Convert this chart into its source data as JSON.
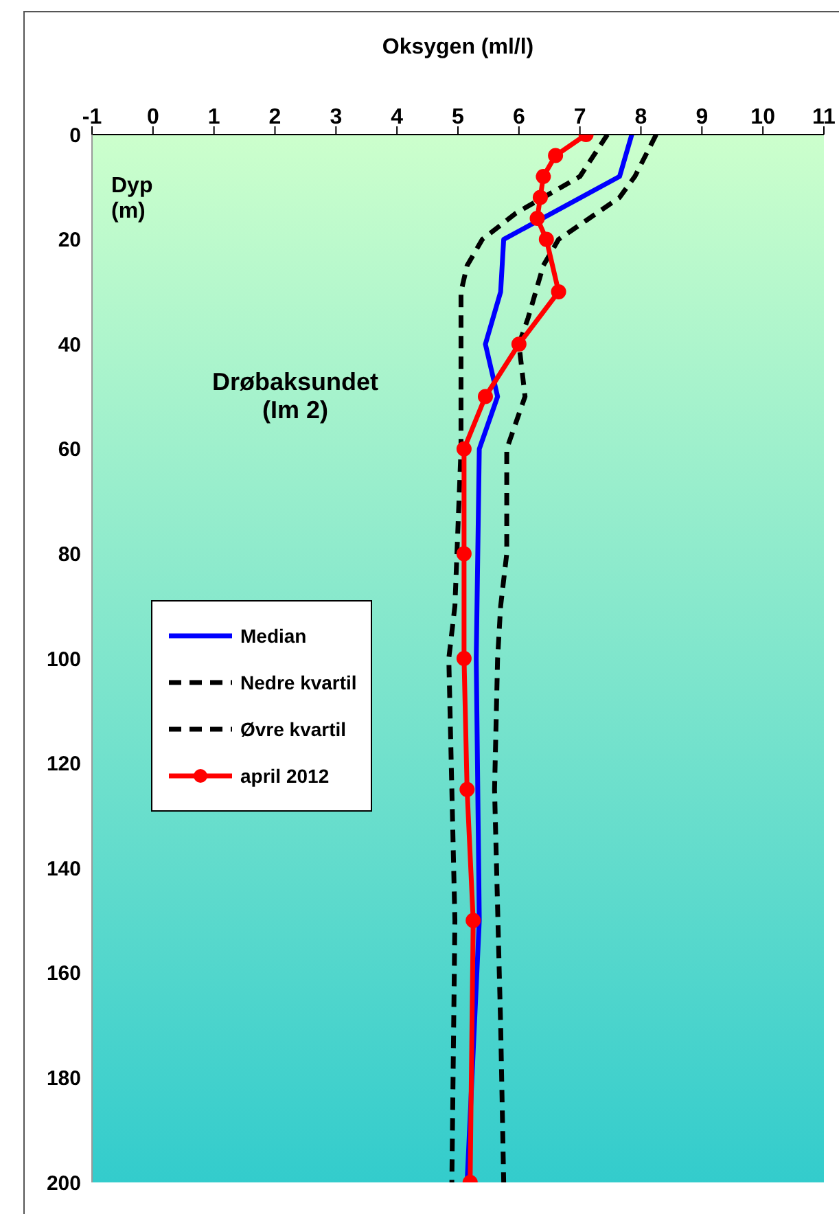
{
  "chart_data": {
    "type": "line",
    "orientation": "horizontal",
    "xlabel": "Oksygen (ml/l)",
    "ylabel": "Dyp\n(m)",
    "annotations": [
      "Drøbaksundet\n(Im 2)"
    ],
    "xlim": [
      -1,
      11
    ],
    "xticks": [
      -1,
      0,
      1,
      2,
      3,
      4,
      5,
      6,
      7,
      8,
      9,
      10,
      11
    ],
    "ylim": [
      200,
      0
    ],
    "yticks": [
      0,
      20,
      40,
      60,
      80,
      100,
      120,
      140,
      160,
      180,
      200
    ],
    "grid": false,
    "legend": "left",
    "series": [
      {
        "name": "Median",
        "color": "#0000ff",
        "line_style": "solid",
        "marker": "none",
        "x": [
          0,
          8,
          20,
          30,
          40,
          50,
          60,
          100,
          150,
          200
        ],
        "values": [
          7.85,
          7.65,
          5.75,
          5.7,
          5.45,
          5.65,
          5.35,
          5.3,
          5.35,
          5.15
        ]
      },
      {
        "name": "Nedre kvartil",
        "color": "#000000",
        "line_style": "dashed",
        "marker": "none",
        "x": [
          0,
          8,
          15,
          20,
          25,
          30,
          40,
          60,
          90,
          100,
          150,
          200
        ],
        "values": [
          7.45,
          7.0,
          5.95,
          5.4,
          5.15,
          5.05,
          5.05,
          5.05,
          4.95,
          4.85,
          4.95,
          4.9
        ]
      },
      {
        "name": "Øvre kvartil",
        "color": "#000000",
        "line_style": "dashed",
        "marker": "none",
        "x": [
          0,
          8,
          12,
          20,
          25,
          35,
          40,
          50,
          60,
          80,
          90,
          100,
          125,
          170,
          200
        ],
        "values": [
          8.25,
          7.9,
          7.65,
          6.65,
          6.4,
          6.15,
          6.0,
          6.1,
          5.8,
          5.8,
          5.7,
          5.65,
          5.6,
          5.7,
          5.75
        ]
      },
      {
        "name": "april 2012",
        "color": "#ff0000",
        "line_style": "solid",
        "marker": "circle",
        "x": [
          0,
          4,
          8,
          12,
          16,
          20,
          30,
          40,
          50,
          60,
          80,
          100,
          125,
          150,
          200
        ],
        "values": [
          7.1,
          6.6,
          6.4,
          6.35,
          6.3,
          6.45,
          6.65,
          6.0,
          5.45,
          5.1,
          5.1,
          5.1,
          5.15,
          5.25,
          5.2
        ]
      }
    ]
  }
}
